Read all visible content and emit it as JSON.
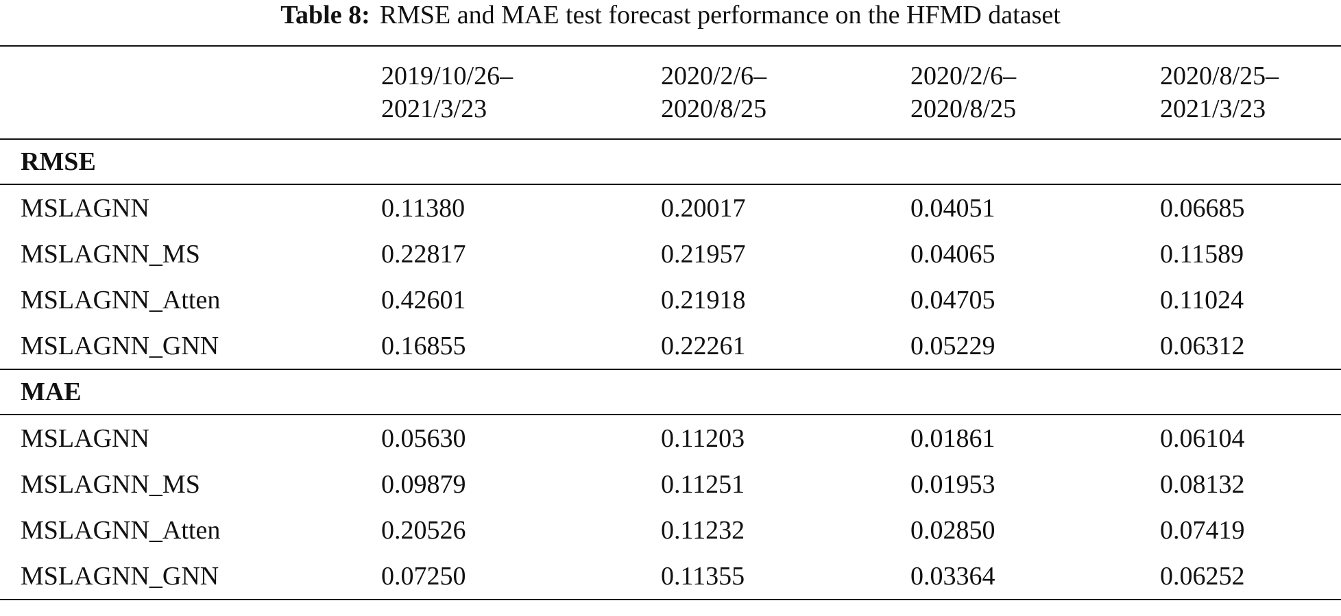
{
  "caption": {
    "label": "Table 8:",
    "text": "RMSE and MAE test forecast performance on the HFMD dataset"
  },
  "columns": [
    {
      "line1": "",
      "line2": ""
    },
    {
      "line1": "2019/10/26–",
      "line2": "2021/3/23"
    },
    {
      "line1": "2020/2/6–",
      "line2": "2020/8/25"
    },
    {
      "line1": "2020/2/6–",
      "line2": "2020/8/25"
    },
    {
      "line1": "2020/8/25–",
      "line2": "2021/3/23"
    }
  ],
  "sections": [
    {
      "title": "RMSE",
      "rows": [
        {
          "model": "MSLAGNN",
          "values": [
            "0.11380",
            "0.20017",
            "0.04051",
            "0.06685"
          ],
          "bold": [
            true,
            true,
            true,
            false
          ]
        },
        {
          "model": "MSLAGNN_MS",
          "values": [
            "0.22817",
            "0.21957",
            "0.04065",
            "0.11589"
          ],
          "bold": [
            false,
            false,
            false,
            false
          ]
        },
        {
          "model": "MSLAGNN_Atten",
          "values": [
            "0.42601",
            "0.21918",
            "0.04705",
            "0.11024"
          ],
          "bold": [
            false,
            false,
            false,
            false
          ]
        },
        {
          "model": "MSLAGNN_GNN",
          "values": [
            "0.16855",
            "0.22261",
            "0.05229",
            "0.06312"
          ],
          "bold": [
            false,
            false,
            false,
            true
          ]
        }
      ]
    },
    {
      "title": "MAE",
      "rows": [
        {
          "model": "MSLAGNN",
          "values": [
            "0.05630",
            "0.11203",
            "0.01861",
            "0.06104"
          ],
          "bold": [
            true,
            true,
            true,
            true
          ]
        },
        {
          "model": "MSLAGNN_MS",
          "values": [
            "0.09879",
            "0.11251",
            "0.01953",
            "0.08132"
          ],
          "bold": [
            false,
            false,
            false,
            false
          ]
        },
        {
          "model": "MSLAGNN_Atten",
          "values": [
            "0.20526",
            "0.11232",
            "0.02850",
            "0.07419"
          ],
          "bold": [
            false,
            false,
            false,
            false
          ]
        },
        {
          "model": "MSLAGNN_GNN",
          "values": [
            "0.07250",
            "0.11355",
            "0.03364",
            "0.06252"
          ],
          "bold": [
            false,
            false,
            false,
            false
          ]
        }
      ]
    }
  ]
}
